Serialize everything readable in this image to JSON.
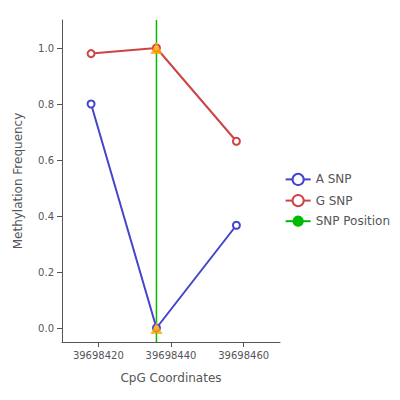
{
  "chart_data": {
    "type": "line",
    "xlabel": "CpG Coordinates",
    "ylabel": "Methylation Frequency",
    "xlim": [
      39698410,
      39698470
    ],
    "ylim": [
      -0.05,
      1.1
    ],
    "xticks": [
      39698420,
      39698440,
      39698460
    ],
    "yticks": [
      {
        "value": 0.0,
        "label": "0.0"
      },
      0.2,
      0.4,
      0.6,
      0.8,
      {
        "value": 1.0,
        "label": "1.0"
      }
    ],
    "grid": false,
    "legend": "right",
    "series": [
      {
        "name": "A SNP",
        "type": "line",
        "color": "#4444cc",
        "marker": "open circle",
        "x": [
          39698418,
          39698436,
          39698458
        ],
        "values": [
          0.8,
          0.0,
          0.367
        ]
      },
      {
        "name": "G SNP",
        "type": "line",
        "color": "#cc4444",
        "marker": "open circle",
        "x": [
          39698418,
          39698436,
          39698458
        ],
        "values": [
          0.98,
          1.0,
          0.667
        ]
      },
      {
        "name": "SNP Position",
        "type": "vline",
        "color": "#00bb00",
        "x": 39698436
      },
      {
        "type": "scatter",
        "color": "#FFA500",
        "marker": "triangle",
        "x": [
          39698436,
          39698436
        ],
        "values": [
          0.0,
          1.0
        ]
      }
    ]
  }
}
